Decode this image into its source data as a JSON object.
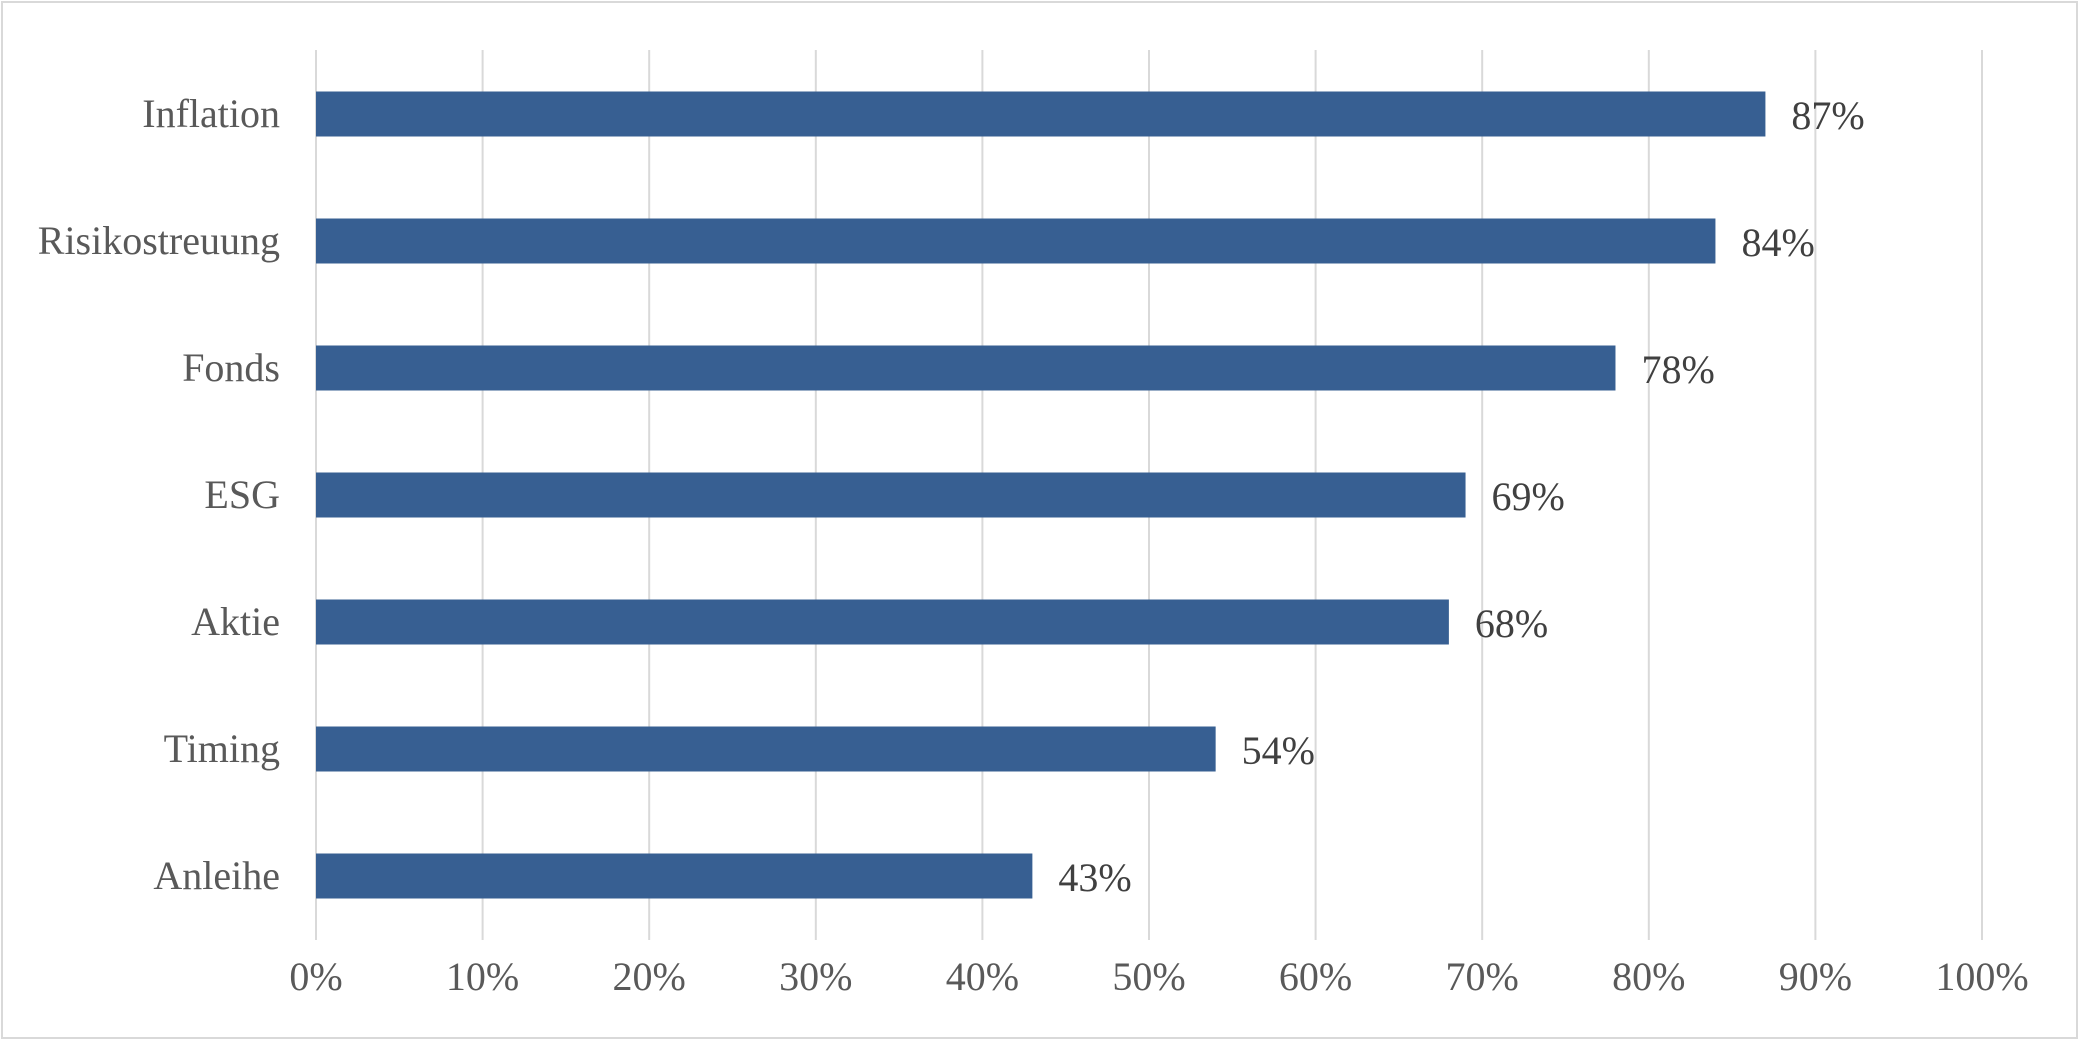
{
  "chart_data": {
    "type": "bar",
    "orientation": "horizontal",
    "categories": [
      "Inflation",
      "Risikostreuung",
      "Fonds",
      "ESG",
      "Aktie",
      "Timing",
      "Anleihe"
    ],
    "values": [
      0.87,
      0.84,
      0.78,
      0.69,
      0.68,
      0.54,
      0.43
    ],
    "data_labels": [
      "87%",
      "84%",
      "78%",
      "69%",
      "68%",
      "54%",
      "43%"
    ],
    "xlim": [
      0,
      1
    ],
    "x_ticks": [
      0,
      0.1,
      0.2,
      0.3,
      0.4,
      0.5,
      0.6,
      0.7,
      0.8,
      0.9,
      1.0
    ],
    "x_tick_labels": [
      "0%",
      "10%",
      "20%",
      "30%",
      "40%",
      "50%",
      "60%",
      "70%",
      "80%",
      "90%",
      "100%"
    ],
    "title": "",
    "xlabel": "",
    "ylabel": "",
    "grid": "vertical",
    "legend": "none",
    "bar_color": "#375f92",
    "grid_color": "#d9d9d9",
    "text_color": "#595959"
  }
}
